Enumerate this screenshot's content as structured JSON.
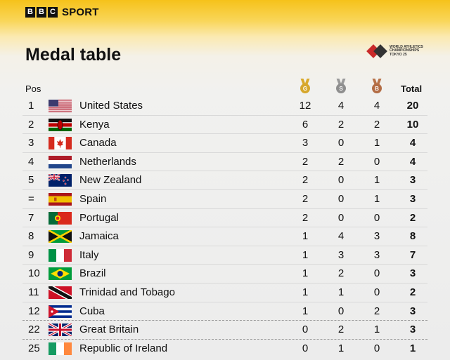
{
  "brand": {
    "blocks": [
      "B",
      "B",
      "C"
    ],
    "section": "SPORT"
  },
  "page_title": "Medal table",
  "event_logo": {
    "lines": [
      "WORLD ATHLETICS",
      "CHAMPIONSHIPS",
      "TOKYO 25"
    ]
  },
  "columns": {
    "pos": "Pos",
    "gold_letter": "G",
    "silver_letter": "S",
    "bronze_letter": "B",
    "total": "Total"
  },
  "rows": [
    {
      "pos": "1",
      "country": "United States",
      "flag": "flag-usa-icon",
      "gold": "12",
      "silver": "4",
      "bronze": "4",
      "total": "20"
    },
    {
      "pos": "2",
      "country": "Kenya",
      "flag": "flag-kenya-icon",
      "gold": "6",
      "silver": "2",
      "bronze": "2",
      "total": "10"
    },
    {
      "pos": "3",
      "country": "Canada",
      "flag": "flag-canada-icon",
      "gold": "3",
      "silver": "0",
      "bronze": "1",
      "total": "4"
    },
    {
      "pos": "4",
      "country": "Netherlands",
      "flag": "flag-netherlands-icon",
      "gold": "2",
      "silver": "2",
      "bronze": "0",
      "total": "4"
    },
    {
      "pos": "5",
      "country": "New Zealand",
      "flag": "flag-new-zealand-icon",
      "gold": "2",
      "silver": "0",
      "bronze": "1",
      "total": "3"
    },
    {
      "pos": "=",
      "country": "Spain",
      "flag": "flag-spain-icon",
      "gold": "2",
      "silver": "0",
      "bronze": "1",
      "total": "3"
    },
    {
      "pos": "7",
      "country": "Portugal",
      "flag": "flag-portugal-icon",
      "gold": "2",
      "silver": "0",
      "bronze": "0",
      "total": "2"
    },
    {
      "pos": "8",
      "country": "Jamaica",
      "flag": "flag-jamaica-icon",
      "gold": "1",
      "silver": "4",
      "bronze": "3",
      "total": "8"
    },
    {
      "pos": "9",
      "country": "Italy",
      "flag": "flag-italy-icon",
      "gold": "1",
      "silver": "3",
      "bronze": "3",
      "total": "7"
    },
    {
      "pos": "10",
      "country": "Brazil",
      "flag": "flag-brazil-icon",
      "gold": "1",
      "silver": "2",
      "bronze": "0",
      "total": "3"
    },
    {
      "pos": "11",
      "country": "Trinidad and Tobago",
      "flag": "flag-trinidad-tobago-icon",
      "gold": "1",
      "silver": "1",
      "bronze": "0",
      "total": "2"
    },
    {
      "pos": "12",
      "country": "Cuba",
      "flag": "flag-cuba-icon",
      "gold": "1",
      "silver": "0",
      "bronze": "2",
      "total": "3"
    },
    {
      "pos": "22",
      "country": "Great Britain",
      "flag": "flag-great-britain-icon",
      "gold": "0",
      "silver": "2",
      "bronze": "1",
      "total": "3"
    },
    {
      "pos": "25",
      "country": "Republic of Ireland",
      "flag": "flag-ireland-icon",
      "gold": "0",
      "silver": "1",
      "bronze": "0",
      "total": "1"
    }
  ],
  "colors": {
    "header_yellow": "#f6c21a",
    "gold": "#d6a72c",
    "silver": "#8e8e8e",
    "bronze": "#b36d45"
  }
}
